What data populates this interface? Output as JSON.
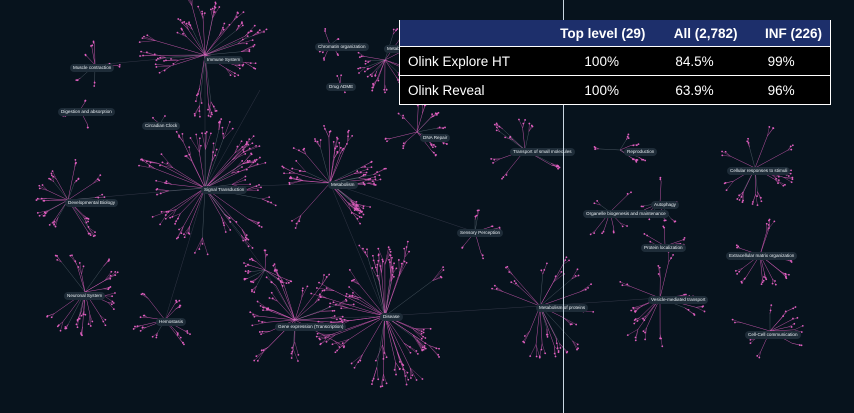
{
  "labels": [
    {
      "id": "muscle",
      "text": "Muscle contraction"
    },
    {
      "id": "immune",
      "text": "Immune System"
    },
    {
      "id": "chromatin",
      "text": "Chromatin organization"
    },
    {
      "id": "metab-top",
      "text": "Metab"
    },
    {
      "id": "drug",
      "text": "Drug ADME"
    },
    {
      "id": "digestion",
      "text": "Digestion and absorption"
    },
    {
      "id": "circadian",
      "text": "Circadian Clock"
    },
    {
      "id": "dna",
      "text": "DNA Repair"
    },
    {
      "id": "transport",
      "text": "Transport of small molecules"
    },
    {
      "id": "reproduction",
      "text": "Reproduction"
    },
    {
      "id": "cellular",
      "text": "Cellular responses to stimuli"
    },
    {
      "id": "signal",
      "text": "Signal Transduction"
    },
    {
      "id": "metabolism",
      "text": "Metabolism"
    },
    {
      "id": "devbio",
      "text": "Developmental Biology"
    },
    {
      "id": "autophagy",
      "text": "Autophagy"
    },
    {
      "id": "organelle",
      "text": "Organelle biogenesis and maintenance"
    },
    {
      "id": "sensory",
      "text": "Sensory Perception"
    },
    {
      "id": "protein",
      "text": "Protein localization"
    },
    {
      "id": "ecm",
      "text": "Extracellular matrix organization"
    },
    {
      "id": "neuronal",
      "text": "Neuronal System"
    },
    {
      "id": "hemostasis",
      "text": "Hemostasis"
    },
    {
      "id": "gene",
      "text": "Gene expression (Transcription)"
    },
    {
      "id": "disease",
      "text": "Disease"
    },
    {
      "id": "metabprot",
      "text": "Metabolism of proteins"
    },
    {
      "id": "vesicle",
      "text": "Vesicle-mediated transport"
    },
    {
      "id": "cellcell",
      "text": "Cell-Cell communication"
    }
  ],
  "table": {
    "headers": [
      "",
      "Top level (29)",
      "All (2,782)",
      "INF (226)"
    ],
    "rows": [
      {
        "name": "Olink Explore HT",
        "top": "100%",
        "all": "84.5%",
        "inf": "99%"
      },
      {
        "name": "Olink Reveal",
        "top": "100%",
        "all": "63.9%",
        "inf": "96%"
      }
    ]
  },
  "colors": {
    "background": "#07131d",
    "edge": "#e05fbf",
    "table_header": "#1d2f6b"
  }
}
